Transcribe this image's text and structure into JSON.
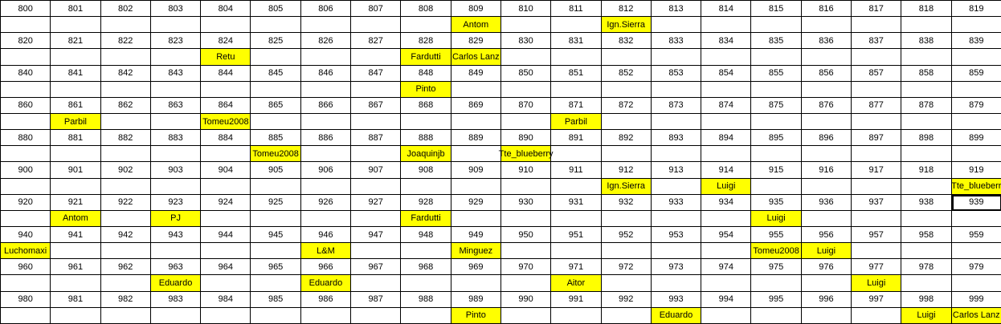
{
  "highlight_color": "#ffff00",
  "selected_cell": "939",
  "rows": [
    {
      "numbers": [
        "800",
        "801",
        "802",
        "803",
        "804",
        "805",
        "806",
        "807",
        "808",
        "809",
        "810",
        "811",
        "812",
        "813",
        "814",
        "815",
        "816",
        "817",
        "818",
        "819"
      ],
      "names": [
        {
          "col": 9,
          "name": "Antom"
        },
        {
          "col": 12,
          "name": "Ign.Sierra"
        }
      ]
    },
    {
      "numbers": [
        "820",
        "821",
        "822",
        "823",
        "824",
        "825",
        "826",
        "827",
        "828",
        "829",
        "830",
        "831",
        "832",
        "833",
        "834",
        "835",
        "836",
        "837",
        "838",
        "839"
      ],
      "names": [
        {
          "col": 4,
          "name": "Retu"
        },
        {
          "col": 8,
          "name": "Fardutti"
        },
        {
          "col": 9,
          "name": "Carlos Lanz"
        }
      ]
    },
    {
      "numbers": [
        "840",
        "841",
        "842",
        "843",
        "844",
        "845",
        "846",
        "847",
        "848",
        "849",
        "850",
        "851",
        "852",
        "853",
        "854",
        "855",
        "856",
        "857",
        "858",
        "859"
      ],
      "names": [
        {
          "col": 8,
          "name": "Pinto"
        }
      ]
    },
    {
      "numbers": [
        "860",
        "861",
        "862",
        "863",
        "864",
        "865",
        "866",
        "867",
        "868",
        "869",
        "870",
        "871",
        "872",
        "873",
        "874",
        "875",
        "876",
        "877",
        "878",
        "879"
      ],
      "names": [
        {
          "col": 1,
          "name": "Parbil"
        },
        {
          "col": 4,
          "name": "Tomeu2008"
        },
        {
          "col": 11,
          "name": "Parbil"
        }
      ]
    },
    {
      "numbers": [
        "880",
        "881",
        "882",
        "883",
        "884",
        "885",
        "886",
        "887",
        "888",
        "889",
        "890",
        "891",
        "892",
        "893",
        "894",
        "895",
        "896",
        "897",
        "898",
        "899"
      ],
      "names": [
        {
          "col": 5,
          "name": "Tomeu2008"
        },
        {
          "col": 8,
          "name": "Joaquinjb"
        },
        {
          "col": 10,
          "name": "Tte_blueberry"
        }
      ]
    },
    {
      "numbers": [
        "900",
        "901",
        "902",
        "903",
        "904",
        "905",
        "906",
        "907",
        "908",
        "909",
        "910",
        "911",
        "912",
        "913",
        "914",
        "915",
        "916",
        "917",
        "918",
        "919"
      ],
      "names": [
        {
          "col": 12,
          "name": "Ign.Sierra"
        },
        {
          "col": 14,
          "name": "Luigi"
        },
        {
          "col": 19,
          "name": "Tte_blueberr"
        }
      ]
    },
    {
      "numbers": [
        "920",
        "921",
        "922",
        "923",
        "924",
        "925",
        "926",
        "927",
        "928",
        "929",
        "930",
        "931",
        "932",
        "933",
        "934",
        "935",
        "936",
        "937",
        "938",
        "939"
      ],
      "names": [
        {
          "col": 1,
          "name": "Antom"
        },
        {
          "col": 3,
          "name": "PJ"
        },
        {
          "col": 8,
          "name": "Fardutti"
        },
        {
          "col": 15,
          "name": "Luigi"
        }
      ]
    },
    {
      "numbers": [
        "940",
        "941",
        "942",
        "943",
        "944",
        "945",
        "946",
        "947",
        "948",
        "949",
        "950",
        "951",
        "952",
        "953",
        "954",
        "955",
        "956",
        "957",
        "958",
        "959"
      ],
      "names": [
        {
          "col": 0,
          "name": "Luchomaxi"
        },
        {
          "col": 6,
          "name": "L&M"
        },
        {
          "col": 9,
          "name": "Minguez"
        },
        {
          "col": 15,
          "name": "Tomeu2008"
        },
        {
          "col": 16,
          "name": "Luigi"
        }
      ]
    },
    {
      "numbers": [
        "960",
        "961",
        "962",
        "963",
        "964",
        "965",
        "966",
        "967",
        "968",
        "969",
        "970",
        "971",
        "972",
        "973",
        "974",
        "975",
        "976",
        "977",
        "978",
        "979"
      ],
      "names": [
        {
          "col": 3,
          "name": "Eduardo"
        },
        {
          "col": 6,
          "name": "Eduardo"
        },
        {
          "col": 11,
          "name": "Aitor"
        },
        {
          "col": 17,
          "name": "Luigi"
        }
      ]
    },
    {
      "numbers": [
        "980",
        "981",
        "982",
        "983",
        "984",
        "985",
        "986",
        "987",
        "988",
        "989",
        "990",
        "991",
        "992",
        "993",
        "994",
        "995",
        "996",
        "997",
        "998",
        "999"
      ],
      "names": [
        {
          "col": 9,
          "name": "Pinto"
        },
        {
          "col": 13,
          "name": "Eduardo"
        },
        {
          "col": 18,
          "name": "Luigi"
        },
        {
          "col": 19,
          "name": "Carlos Lanz"
        }
      ]
    }
  ]
}
